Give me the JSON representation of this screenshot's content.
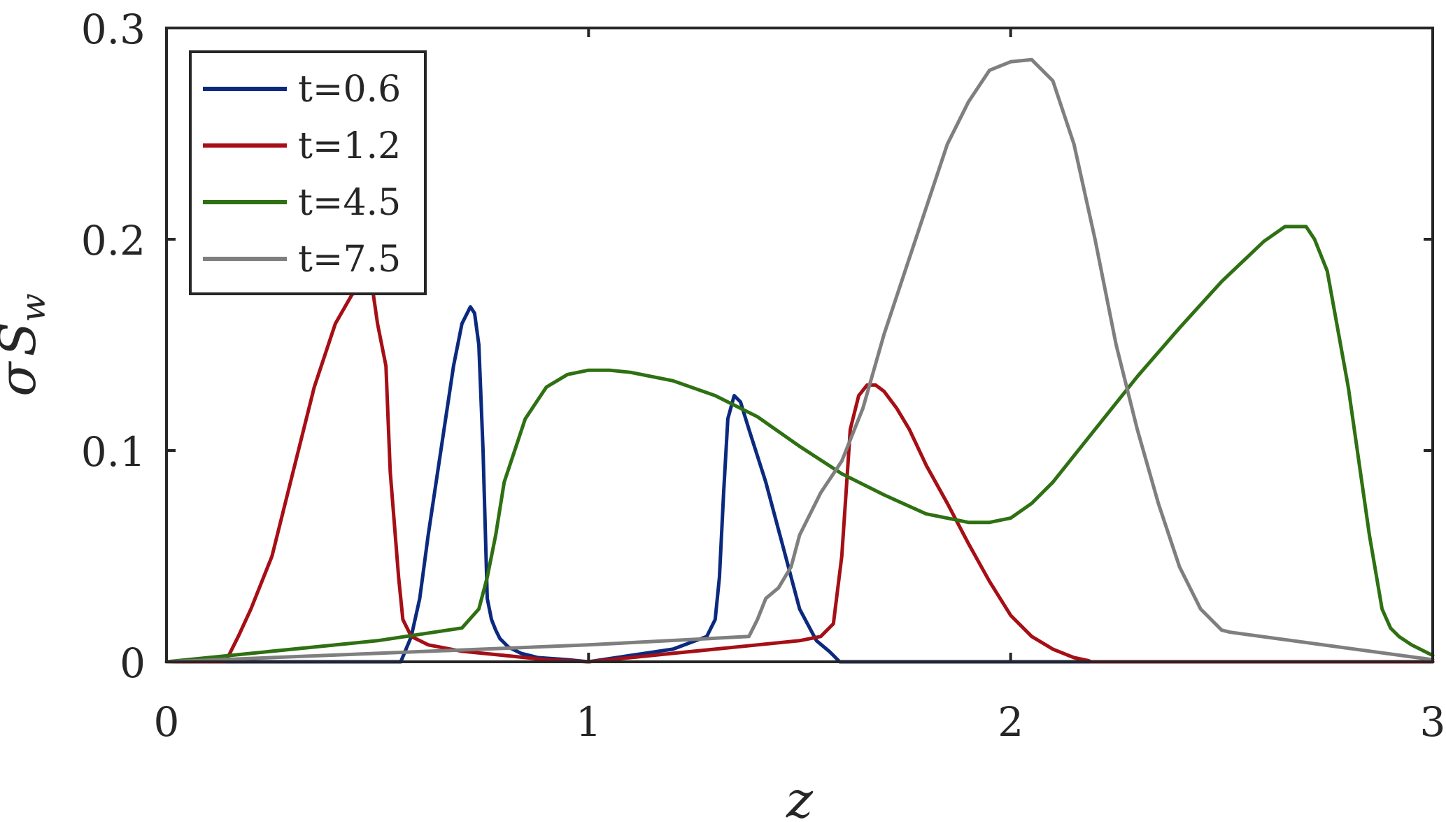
{
  "chart_data": {
    "type": "line",
    "title": "",
    "xlabel": "z",
    "ylabel": "σS_w",
    "ylabel_main": "σ",
    "ylabel_sub_base": "S",
    "ylabel_subscript": "w",
    "xlim": [
      0,
      3
    ],
    "ylim": [
      0,
      0.3
    ],
    "xticks": [
      0,
      1,
      2,
      3
    ],
    "xtick_labels": [
      "0",
      "1",
      "2",
      "3"
    ],
    "yticks": [
      0,
      0.1,
      0.2,
      0.3
    ],
    "ytick_labels": [
      "0",
      "0.1",
      "0.2",
      "0.3"
    ],
    "grid": false,
    "legend_position": "top-left",
    "series": [
      {
        "name": "t=0.6",
        "color": "#0b2a7f",
        "x": [
          0,
          0.5,
          0.555,
          0.58,
          0.6,
          0.62,
          0.65,
          0.68,
          0.7,
          0.72,
          0.73,
          0.74,
          0.75,
          0.76,
          0.77,
          0.78,
          0.79,
          0.81,
          0.84,
          0.88,
          0.95,
          1.0,
          1.1,
          1.2,
          1.28,
          1.3,
          1.31,
          1.32,
          1.33,
          1.345,
          1.36,
          1.38,
          1.42,
          1.46,
          1.5,
          1.54,
          1.57,
          1.58,
          1.595,
          3
        ],
        "y": [
          0,
          0,
          0,
          0.012,
          0.03,
          0.06,
          0.1,
          0.14,
          0.16,
          0.168,
          0.165,
          0.15,
          0.1,
          0.03,
          0.02,
          0.015,
          0.011,
          0.007,
          0.004,
          0.002,
          0.001,
          0.0,
          0.003,
          0.006,
          0.012,
          0.02,
          0.04,
          0.08,
          0.115,
          0.126,
          0.123,
          0.11,
          0.085,
          0.055,
          0.025,
          0.01,
          0.005,
          0.003,
          0,
          0
        ]
      },
      {
        "name": "t=1.2",
        "color": "#a50f15",
        "x": [
          0,
          0.14,
          0.17,
          0.2,
          0.25,
          0.3,
          0.35,
          0.4,
          0.44,
          0.47,
          0.49,
          0.5,
          0.52,
          0.53,
          0.55,
          0.56,
          0.58,
          0.62,
          0.7,
          0.8,
          0.9,
          1.0,
          1.1,
          1.2,
          1.3,
          1.4,
          1.5,
          1.55,
          1.58,
          1.6,
          1.61,
          1.62,
          1.64,
          1.66,
          1.68,
          1.7,
          1.73,
          1.76,
          1.8,
          1.85,
          1.9,
          1.95,
          2.0,
          2.05,
          2.1,
          2.15,
          2.185,
          2.19,
          3
        ],
        "y": [
          0,
          0,
          0.012,
          0.025,
          0.05,
          0.09,
          0.13,
          0.16,
          0.174,
          0.176,
          0.174,
          0.16,
          0.14,
          0.09,
          0.04,
          0.02,
          0.012,
          0.008,
          0.005,
          0.003,
          0.001,
          0.0,
          0.002,
          0.004,
          0.006,
          0.008,
          0.01,
          0.012,
          0.018,
          0.05,
          0.08,
          0.11,
          0.126,
          0.131,
          0.131,
          0.128,
          0.12,
          0.11,
          0.093,
          0.075,
          0.056,
          0.038,
          0.022,
          0.012,
          0.006,
          0.002,
          0.0005,
          0,
          0
        ]
      },
      {
        "name": "t=4.5",
        "color": "#2e7012",
        "x": [
          0,
          0.5,
          0.7,
          0.74,
          0.76,
          0.78,
          0.8,
          0.85,
          0.9,
          0.95,
          1.0,
          1.05,
          1.1,
          1.2,
          1.3,
          1.4,
          1.5,
          1.6,
          1.7,
          1.8,
          1.9,
          1.95,
          2.0,
          2.05,
          2.1,
          2.2,
          2.3,
          2.4,
          2.5,
          2.6,
          2.65,
          2.7,
          2.72,
          2.75,
          2.8,
          2.85,
          2.88,
          2.9,
          2.92,
          2.95,
          3.0
        ],
        "y": [
          0,
          0.01,
          0.016,
          0.025,
          0.04,
          0.06,
          0.085,
          0.115,
          0.13,
          0.136,
          0.138,
          0.138,
          0.137,
          0.133,
          0.126,
          0.116,
          0.102,
          0.089,
          0.079,
          0.07,
          0.066,
          0.066,
          0.068,
          0.075,
          0.085,
          0.11,
          0.135,
          0.158,
          0.18,
          0.199,
          0.206,
          0.206,
          0.2,
          0.185,
          0.13,
          0.06,
          0.025,
          0.016,
          0.012,
          0.008,
          0.003
        ]
      },
      {
        "name": "t=7.5",
        "color": "#7f7f7f",
        "x": [
          0,
          1.0,
          1.38,
          1.4,
          1.42,
          1.45,
          1.48,
          1.5,
          1.55,
          1.6,
          1.65,
          1.7,
          1.75,
          1.8,
          1.85,
          1.9,
          1.95,
          2.0,
          2.05,
          2.1,
          2.15,
          2.2,
          2.25,
          2.3,
          2.35,
          2.4,
          2.45,
          2.5,
          2.52,
          3.0
        ],
        "y": [
          0,
          0.008,
          0.012,
          0.02,
          0.03,
          0.035,
          0.045,
          0.06,
          0.08,
          0.095,
          0.12,
          0.155,
          0.185,
          0.215,
          0.245,
          0.265,
          0.28,
          0.284,
          0.285,
          0.275,
          0.245,
          0.2,
          0.15,
          0.11,
          0.075,
          0.045,
          0.025,
          0.015,
          0.014,
          0.001
        ]
      }
    ]
  }
}
